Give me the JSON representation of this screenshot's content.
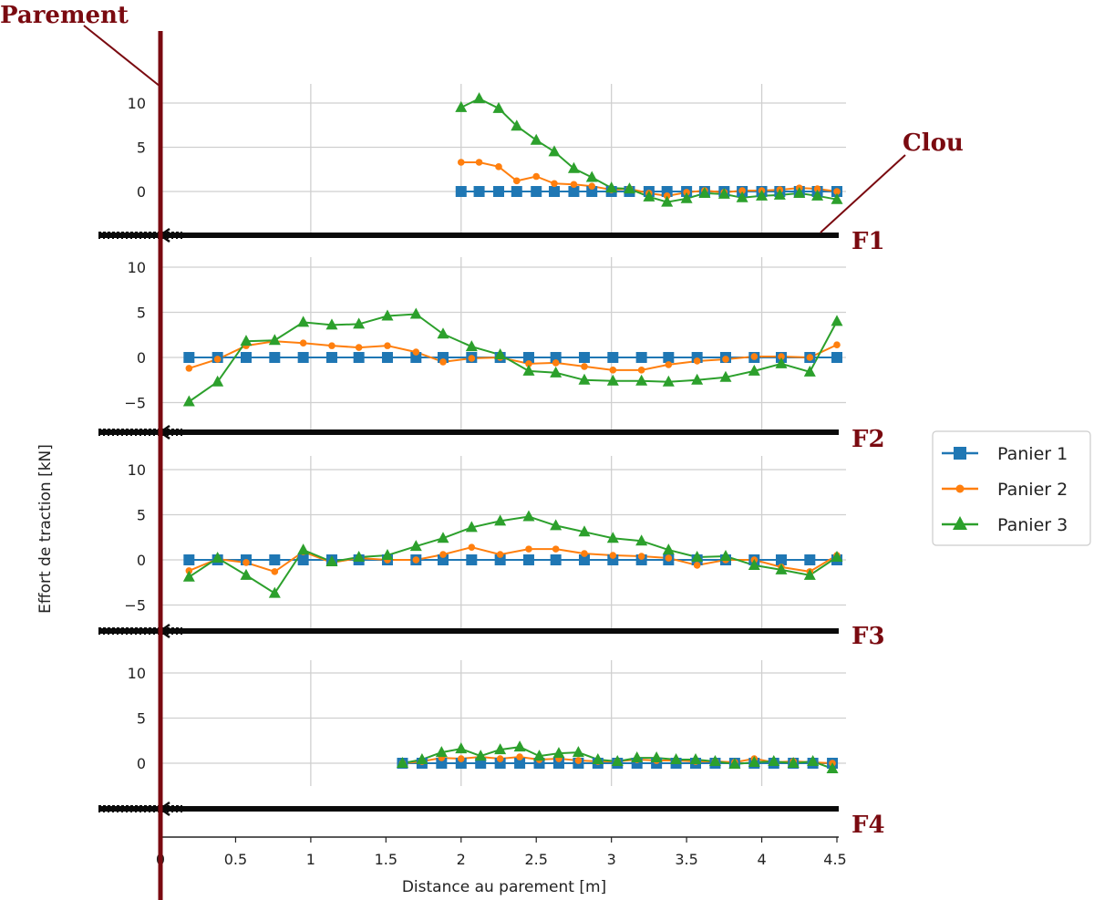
{
  "chart_data": {
    "type": "line",
    "ylabel": "Effort de traction  [kN]",
    "xlabel": "Distance au parement [m]",
    "xlim": [
      0,
      4.5
    ],
    "x_ticks": [
      "0",
      "0.5",
      "1",
      "1.5",
      "2",
      "2.5",
      "3",
      "3.5",
      "4",
      "4.5"
    ],
    "legend": {
      "placement": "center-right",
      "entries": [
        {
          "label": "Panier 1",
          "color": "#1f77b4",
          "marker": "square"
        },
        {
          "label": "Panier 2",
          "color": "#ff7f0e",
          "marker": "circle"
        },
        {
          "label": "Panier 3",
          "color": "#2ca02c",
          "marker": "triangle"
        }
      ]
    },
    "annotations": {
      "parement": "Parement",
      "clou": "Clou"
    },
    "panels": [
      {
        "label": "F1",
        "y_ticks": [
          "10",
          "5",
          "0"
        ],
        "series": [
          {
            "name": "Panier 1",
            "x": [
              2.0,
              2.12,
              2.25,
              2.37,
              2.5,
              2.62,
              2.75,
              2.87,
              3.0,
              3.12,
              3.25,
              3.37,
              3.5,
              3.62,
              3.75,
              3.87,
              4.0,
              4.12,
              4.25,
              4.37,
              4.5
            ],
            "y": [
              0,
              0,
              0,
              0,
              0,
              0,
              0,
              0,
              0,
              0,
              0,
              0,
              0,
              0,
              0,
              0,
              0,
              0,
              0,
              0,
              0
            ]
          },
          {
            "name": "Panier 2",
            "x": [
              2.0,
              2.12,
              2.25,
              2.37,
              2.5,
              2.62,
              2.75,
              2.87,
              3.0,
              3.12,
              3.25,
              3.37,
              3.5,
              3.62,
              3.75,
              3.87,
              4.0,
              4.12,
              4.25,
              4.37,
              4.5
            ],
            "y": [
              3.3,
              3.3,
              2.8,
              1.2,
              1.7,
              0.9,
              0.8,
              0.6,
              0.2,
              0.3,
              -0.2,
              -0.5,
              -0.1,
              0.1,
              -0.1,
              0.1,
              0.1,
              0.2,
              0.4,
              0.3,
              0.0
            ]
          },
          {
            "name": "Panier 3",
            "x": [
              2.0,
              2.12,
              2.25,
              2.37,
              2.5,
              2.62,
              2.75,
              2.87,
              3.0,
              3.12,
              3.25,
              3.37,
              3.5,
              3.62,
              3.75,
              3.87,
              4.0,
              4.12,
              4.25,
              4.37,
              4.5
            ],
            "y": [
              9.5,
              10.5,
              9.4,
              7.4,
              5.8,
              4.5,
              2.6,
              1.6,
              0.4,
              0.3,
              -0.6,
              -1.2,
              -0.8,
              -0.2,
              -0.3,
              -0.7,
              -0.5,
              -0.4,
              -0.2,
              -0.5,
              -0.9
            ]
          }
        ]
      },
      {
        "label": "F2",
        "y_ticks": [
          "10",
          "5",
          "0",
          "−5"
        ],
        "series": [
          {
            "name": "Panier 1",
            "x": [
              0.19,
              0.38,
              0.57,
              0.76,
              0.95,
              1.14,
              1.32,
              1.51,
              1.7,
              1.88,
              2.07,
              2.26,
              2.45,
              2.63,
              2.82,
              3.01,
              3.2,
              3.38,
              3.57,
              3.76,
              3.95,
              4.13,
              4.32,
              4.5
            ],
            "y": [
              0,
              0,
              0,
              0,
              0,
              0,
              0,
              0,
              0,
              0,
              0,
              0,
              0,
              0,
              0,
              0,
              0,
              0,
              0,
              0,
              0,
              0,
              0,
              0
            ]
          },
          {
            "name": "Panier 2",
            "x": [
              0.19,
              0.38,
              0.57,
              0.76,
              0.95,
              1.14,
              1.32,
              1.51,
              1.7,
              1.88,
              2.07,
              2.26,
              2.45,
              2.63,
              2.82,
              3.01,
              3.2,
              3.38,
              3.57,
              3.76,
              3.95,
              4.13,
              4.32,
              4.5
            ],
            "y": [
              -1.2,
              -0.2,
              1.3,
              1.8,
              1.6,
              1.3,
              1.1,
              1.3,
              0.6,
              -0.5,
              -0.1,
              0.0,
              -0.7,
              -0.6,
              -1.0,
              -1.4,
              -1.4,
              -0.8,
              -0.4,
              -0.2,
              0.1,
              0.1,
              0.0,
              1.4
            ]
          },
          {
            "name": "Panier 3",
            "x": [
              0.19,
              0.38,
              0.57,
              0.76,
              0.95,
              1.14,
              1.32,
              1.51,
              1.7,
              1.88,
              2.07,
              2.26,
              2.45,
              2.63,
              2.82,
              3.01,
              3.2,
              3.38,
              3.57,
              3.76,
              3.95,
              4.13,
              4.32,
              4.5
            ],
            "y": [
              -4.9,
              -2.7,
              1.8,
              1.9,
              3.9,
              3.6,
              3.7,
              4.6,
              4.8,
              2.6,
              1.2,
              0.3,
              -1.5,
              -1.7,
              -2.5,
              -2.6,
              -2.6,
              -2.7,
              -2.5,
              -2.2,
              -1.5,
              -0.7,
              -1.6,
              4.0
            ]
          }
        ]
      },
      {
        "label": "F3",
        "y_ticks": [
          "10",
          "5",
          "0",
          "−5"
        ],
        "series": [
          {
            "name": "Panier 1",
            "x": [
              0.19,
              0.38,
              0.57,
              0.76,
              0.95,
              1.14,
              1.32,
              1.51,
              1.7,
              1.88,
              2.07,
              2.26,
              2.45,
              2.63,
              2.82,
              3.01,
              3.2,
              3.38,
              3.57,
              3.76,
              3.95,
              4.13,
              4.32,
              4.5
            ],
            "y": [
              0,
              0,
              0,
              0,
              0,
              0,
              0,
              0,
              0,
              0,
              0,
              0,
              0,
              0,
              0,
              0,
              0,
              0,
              0,
              0,
              0,
              0,
              0,
              0
            ]
          },
          {
            "name": "Panier 2",
            "x": [
              0.19,
              0.38,
              0.57,
              0.76,
              0.95,
              1.14,
              1.32,
              1.51,
              1.7,
              1.88,
              2.07,
              2.26,
              2.45,
              2.63,
              2.82,
              3.01,
              3.2,
              3.38,
              3.57,
              3.76,
              3.95,
              4.13,
              4.32,
              4.5
            ],
            "y": [
              -1.2,
              0.1,
              -0.3,
              -1.3,
              0.9,
              -0.3,
              0.2,
              0.0,
              0.0,
              0.6,
              1.4,
              0.6,
              1.2,
              1.2,
              0.7,
              0.5,
              0.4,
              0.2,
              -0.6,
              0.0,
              0.0,
              -0.8,
              -1.3,
              0.5
            ]
          },
          {
            "name": "Panier 3",
            "x": [
              0.19,
              0.38,
              0.57,
              0.76,
              0.95,
              1.14,
              1.32,
              1.51,
              1.7,
              1.88,
              2.07,
              2.26,
              2.45,
              2.63,
              2.82,
              3.01,
              3.2,
              3.38,
              3.57,
              3.76,
              3.95,
              4.13,
              4.32,
              4.5
            ],
            "y": [
              -1.9,
              0.2,
              -1.7,
              -3.7,
              1.1,
              -0.2,
              0.3,
              0.5,
              1.5,
              2.4,
              3.6,
              4.3,
              4.8,
              3.8,
              3.1,
              2.4,
              2.1,
              1.1,
              0.3,
              0.4,
              -0.6,
              -1.1,
              -1.7,
              0.3
            ]
          }
        ]
      },
      {
        "label": "F4",
        "y_ticks": [
          "10",
          "5",
          "0"
        ],
        "series": [
          {
            "name": "Panier 1",
            "x": [
              1.61,
              1.74,
              1.87,
              2.0,
              2.13,
              2.26,
              2.39,
              2.52,
              2.65,
              2.78,
              2.91,
              3.04,
              3.17,
              3.3,
              3.43,
              3.56,
              3.69,
              3.82,
              3.95,
              4.08,
              4.21,
              4.34,
              4.47
            ],
            "y": [
              0,
              0,
              0,
              0,
              0,
              0,
              0,
              0,
              0,
              0,
              0,
              0,
              0,
              0,
              0,
              0,
              0,
              0,
              0,
              0,
              0,
              0,
              0
            ]
          },
          {
            "name": "Panier 2",
            "x": [
              1.61,
              1.74,
              1.87,
              2.0,
              2.13,
              2.26,
              2.39,
              2.52,
              2.65,
              2.78,
              2.91,
              3.04,
              3.17,
              3.3,
              3.43,
              3.56,
              3.69,
              3.82,
              3.95,
              4.08,
              4.21,
              4.34,
              4.47
            ],
            "y": [
              0.0,
              0.2,
              0.6,
              0.5,
              0.7,
              0.5,
              0.7,
              0.4,
              0.5,
              0.3,
              0.2,
              0.2,
              0.4,
              0.3,
              0.3,
              0.2,
              0.2,
              0.1,
              0.5,
              0.1,
              0.2,
              0.1,
              0.0
            ]
          },
          {
            "name": "Panier 3",
            "x": [
              1.61,
              1.74,
              1.87,
              2.0,
              2.13,
              2.26,
              2.39,
              2.52,
              2.65,
              2.78,
              2.91,
              3.04,
              3.17,
              3.3,
              3.43,
              3.56,
              3.69,
              3.82,
              3.95,
              4.08,
              4.21,
              4.34,
              4.47
            ],
            "y": [
              0.0,
              0.4,
              1.2,
              1.6,
              0.8,
              1.5,
              1.8,
              0.8,
              1.1,
              1.2,
              0.4,
              0.2,
              0.6,
              0.6,
              0.4,
              0.4,
              0.2,
              -0.1,
              0.1,
              0.2,
              0.0,
              0.2,
              -0.6
            ]
          }
        ]
      }
    ]
  }
}
